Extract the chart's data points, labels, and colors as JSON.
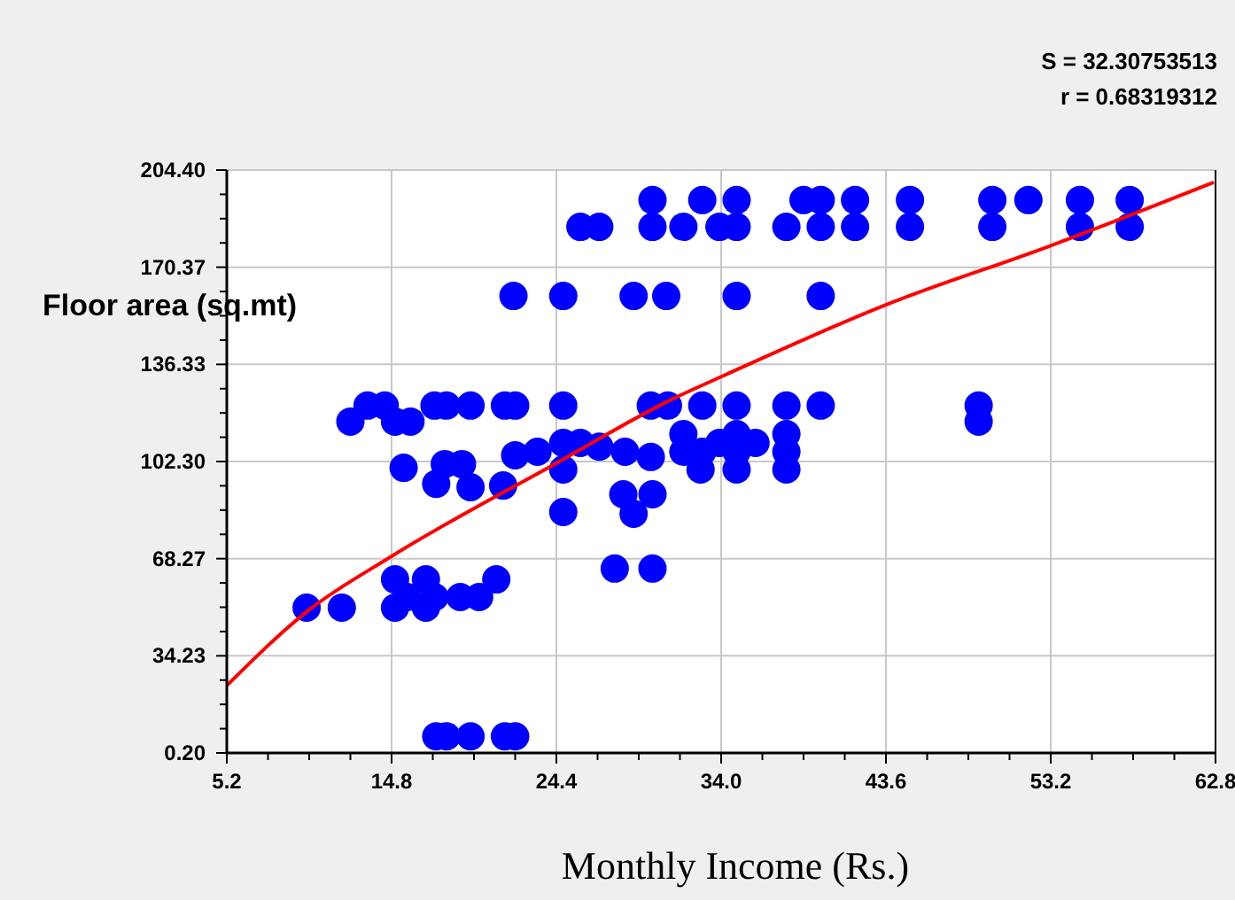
{
  "chart_data": {
    "type": "scatter",
    "xlabel": "Monthly Income (Rs.)",
    "ylabel": "Floor area (sq.mt)",
    "annotations": [
      "S = 32.30753513",
      "r = 0.68319312"
    ],
    "xlim": [
      5.2,
      62.8
    ],
    "xticks": [
      {
        "value": 5.2,
        "label": "5.2"
      },
      {
        "value": 14.8,
        "label": "14.8"
      },
      {
        "value": 24.4,
        "label": "24.4"
      },
      {
        "value": 34,
        "label": "34.0"
      },
      {
        "value": 43.6,
        "label": "43.6"
      },
      {
        "value": 53.2,
        "label": "53.2"
      },
      {
        "value": 62.8,
        "label": "62.8"
      }
    ],
    "ylim": [
      0.2,
      204.4
    ],
    "yticks": [
      {
        "value": 0.2,
        "label": "0.20"
      },
      {
        "value": 34.23,
        "label": "34.23"
      },
      {
        "value": 68.27,
        "label": "68.27"
      },
      {
        "value": 102.3,
        "label": "102.30"
      },
      {
        "value": 136.33,
        "label": "136.33"
      },
      {
        "value": 170.37,
        "label": "170.37"
      },
      {
        "value": 204.4,
        "label": "204.40"
      }
    ],
    "grid": true,
    "marker": "circle",
    "series": [
      {
        "color": "#0000ff",
        "x": [
          30.0,
          32.9,
          34.9,
          38.8,
          39.8,
          41.8,
          45.0,
          49.8,
          51.9,
          54.9,
          57.8,
          25.8,
          26.9,
          30.0,
          31.8,
          33.9,
          34.9,
          37.8,
          39.8,
          41.8,
          45.0,
          49.8,
          54.9,
          57.8,
          21.9,
          24.8,
          28.9,
          30.8,
          34.9,
          39.8,
          13.4,
          14.4,
          17.3,
          18.0,
          19.4,
          21.4,
          22.0,
          24.8,
          29.9,
          30.9,
          32.9,
          34.9,
          37.8,
          39.8,
          49.0,
          12.4,
          15.0,
          15.9,
          49.0,
          15.5,
          17.4,
          17.9,
          18.9,
          19.4,
          21.3,
          22.0,
          23.3,
          24.8,
          24.8,
          25.8,
          26.9,
          28.4,
          29.9,
          28.3,
          28.9,
          30.0,
          24.8,
          27.8,
          30.0,
          31.8,
          31.8,
          32.9,
          33.9,
          34.9,
          34.9,
          36.0,
          37.8,
          37.8,
          32.8,
          34.9,
          37.8,
          15.0,
          15.0,
          16.8,
          16.8,
          15.7,
          17.3,
          18.8,
          19.9,
          20.9,
          9.85,
          11.9,
          17.4,
          18.0,
          19.4,
          21.4,
          22.0
        ],
        "values": [
          193.9,
          193.9,
          193.9,
          193.9,
          193.9,
          193.9,
          193.9,
          193.9,
          193.9,
          193.9,
          193.9,
          184.5,
          184.5,
          184.5,
          184.5,
          184.5,
          184.5,
          184.5,
          184.5,
          184.5,
          184.5,
          184.5,
          184.5,
          184.5,
          160.3,
          160.3,
          160.3,
          160.3,
          160.3,
          160.3,
          121.9,
          121.9,
          121.9,
          121.9,
          121.9,
          121.9,
          121.9,
          121.9,
          121.9,
          121.9,
          121.9,
          121.9,
          121.9,
          121.9,
          121.9,
          116.3,
          116.3,
          116.3,
          116.3,
          100.1,
          94.5,
          101.4,
          101.4,
          93.3,
          93.9,
          104.5,
          105.7,
          108.8,
          99.5,
          108.8,
          107.5,
          105.7,
          103.9,
          90.8,
          84.0,
          90.8,
          84.6,
          64.8,
          64.8,
          111.9,
          105.7,
          105.7,
          108.8,
          111.9,
          105.7,
          108.8,
          111.9,
          105.7,
          99.5,
          99.5,
          99.5,
          61.0,
          51.1,
          61.0,
          51.1,
          54.8,
          54.8,
          54.8,
          54.8,
          61.0,
          51.1,
          51.1,
          6,
          6,
          6,
          6,
          6
        ]
      },
      {
        "type": "line",
        "color": "#ff0000",
        "marker": "none",
        "x": [
          5.2,
          9.9,
          14.8,
          24.3,
          31.2,
          34.0,
          43.6,
          53.1,
          62.7
        ],
        "values": [
          23.8,
          49.9,
          69.1,
          101.4,
          124.3,
          132,
          157.2,
          177.7,
          200.1
        ]
      }
    ]
  }
}
